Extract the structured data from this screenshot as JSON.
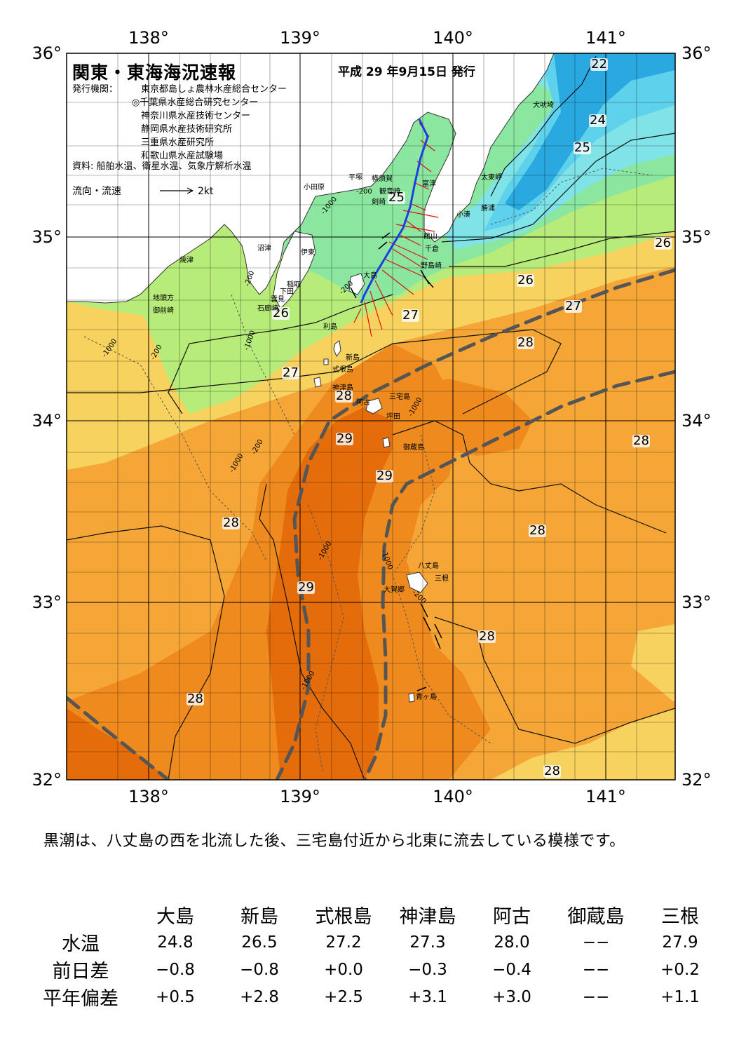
{
  "map": {
    "title": "関東・東海海況速報",
    "issue_date": "平成 29 年9月15日 発行",
    "issuers_label": "発行機関：",
    "issuers": [
      "東京都島しょ農林水産総合センター",
      "◎千葉県水産総合研究センター",
      "神奈川県水産技術センター",
      "静岡県水産技術研究所",
      "三重県水産研究所",
      "和歌山県水産試験場"
    ],
    "source": "資料: 船舶水温、衛星水温、気象庁解析水温",
    "legend_label": "流向・流速",
    "legend_scale": "2kt",
    "lon_labels": [
      "138°",
      "139°",
      "140°",
      "141°"
    ],
    "lat_labels": [
      "36°",
      "35°",
      "34°",
      "33°",
      "32°"
    ],
    "colors": {
      "t22": "#29a9e0",
      "t23": "#5ed2ec",
      "t24": "#7fe3e8",
      "t25": "#8be6a0",
      "t26": "#b8ec7a",
      "t27": "#f7d25e",
      "t28": "#f5a637",
      "t29": "#ee8a1e",
      "t30": "#e46c0a",
      "land": "#ffffff",
      "kuroshio_axis": "#555555",
      "ship_track": "#1f3ee0",
      "current_vector": "#e01010"
    },
    "isotherm_labels": [
      {
        "id": "22-ne",
        "text": "22"
      },
      {
        "id": "24-ne",
        "text": "24"
      },
      {
        "id": "25-ne",
        "text": "25"
      },
      {
        "id": "25-bay",
        "text": "25"
      },
      {
        "id": "26-e",
        "text": "26"
      },
      {
        "id": "26-c",
        "text": "26"
      },
      {
        "id": "27-e",
        "text": "27"
      },
      {
        "id": "26-w",
        "text": "26"
      },
      {
        "id": "27-c",
        "text": "27"
      },
      {
        "id": "27-w",
        "text": "27"
      },
      {
        "id": "28-e",
        "text": "28"
      },
      {
        "id": "28-c",
        "text": "28"
      },
      {
        "id": "28-ee",
        "text": "28"
      },
      {
        "id": "29-c",
        "text": "29"
      },
      {
        "id": "29-c2",
        "text": "29"
      },
      {
        "id": "28-w",
        "text": "28"
      },
      {
        "id": "28-se",
        "text": "28"
      },
      {
        "id": "29-sw",
        "text": "29"
      },
      {
        "id": "28-s",
        "text": "28"
      },
      {
        "id": "28-sw",
        "text": "28"
      },
      {
        "id": "28-bottom",
        "text": "28"
      }
    ],
    "depth_labels": [
      "-200",
      "-1000",
      "-200",
      "-1000",
      "-200",
      "-1000",
      "-200",
      "-1000",
      "-1000",
      "-200",
      "-1000",
      "-1000",
      "-200",
      "-1000"
    ],
    "places": [
      "犬吠埼",
      "太東岬",
      "勝浦",
      "小湊",
      "富津",
      "館山",
      "千倉",
      "野島崎",
      "横須賀",
      "観音崎",
      "剣崎",
      "平塚",
      "小田原",
      "伊東",
      "沼津",
      "焼津",
      "稲取",
      "下田",
      "雲見",
      "石廊崎",
      "地頭方",
      "御前崎",
      "大島",
      "利島",
      "新島",
      "式根島",
      "神津島",
      "三宅島",
      "阿古",
      "坪田",
      "御蔵島",
      "八丈島",
      "三根",
      "大賀郷",
      "青ヶ島"
    ]
  },
  "summary": "黒潮は、八丈島の西を北流した後、三宅島付近から北東に流去している模様です。",
  "table": {
    "columns": [
      "大島",
      "新島",
      "式根島",
      "神津島",
      "阿古",
      "御蔵島",
      "三根"
    ],
    "rows": [
      {
        "label": "水温",
        "values": [
          "24.8",
          "26.5",
          "27.2",
          "27.3",
          "28.0",
          "−−",
          "27.9"
        ]
      },
      {
        "label": "前日差",
        "values": [
          "−0.8",
          "−0.8",
          "+0.0",
          "−0.3",
          "−0.4",
          "−−",
          "+0.2"
        ]
      },
      {
        "label": "平年偏差",
        "values": [
          "+0.5",
          "+2.8",
          "+2.5",
          "+3.1",
          "+3.0",
          "−−",
          "+1.1"
        ]
      }
    ]
  }
}
